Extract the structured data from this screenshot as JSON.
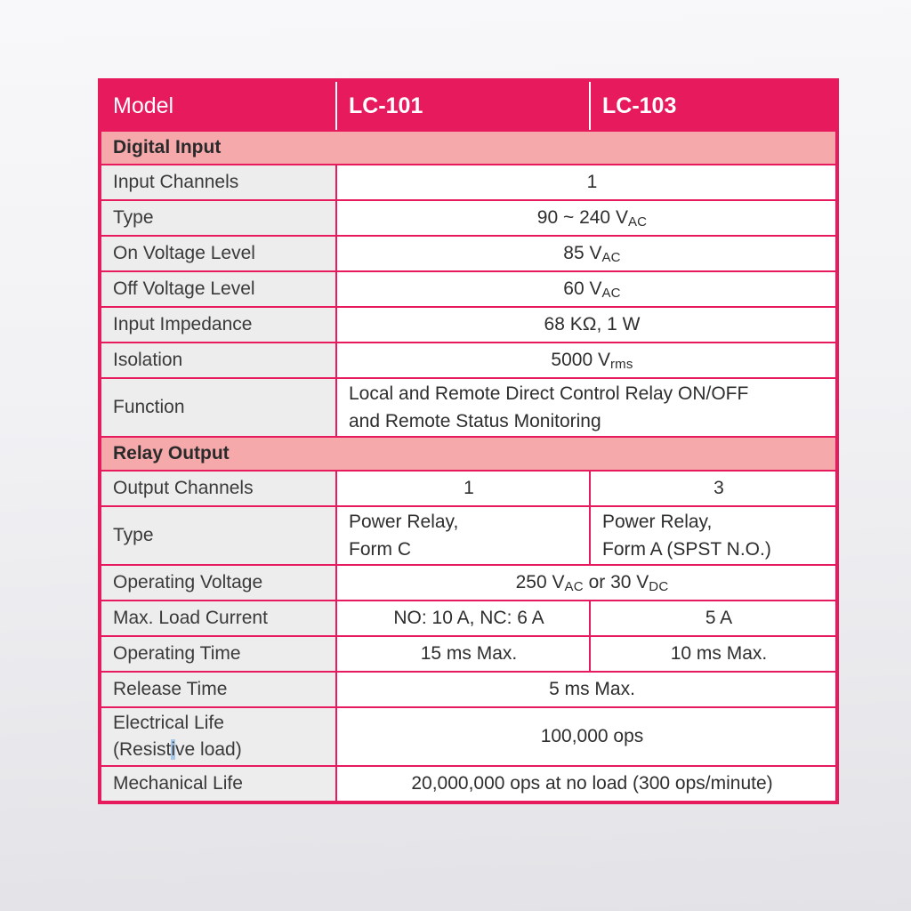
{
  "colors": {
    "header_pink": "#e61a5c",
    "section_pink": "#f5a9ab",
    "label_gray": "#ededee",
    "border_pink": "#e61a5c",
    "selection_blue": "#a9c8e9"
  },
  "table": {
    "header": {
      "model": "Model",
      "lc101": "LC-101",
      "lc103": "LC-103"
    },
    "sections": {
      "digital": "Digital Input",
      "relay": "Relay Output"
    },
    "rows": {
      "input_channels": {
        "label": "Input Channels",
        "value": "1"
      },
      "type_di": {
        "label": "Type",
        "t1": "90 ~ 240 V",
        "s1": "AC"
      },
      "on_voltage": {
        "label": "On Voltage Level",
        "t1": "85 V",
        "s1": "AC"
      },
      "off_voltage": {
        "label": "Off Voltage Level",
        "t1": "60 V",
        "s1": "AC"
      },
      "input_impedance": {
        "label": "Input Impedance",
        "value": "68 KΩ, 1 W"
      },
      "isolation": {
        "label": "Isolation",
        "t1": "5000 V",
        "s1": "rms"
      },
      "function": {
        "label": "Function",
        "line1": "Local and Remote Direct Control Relay ON/OFF",
        "line2": "and Remote Status Monitoring"
      },
      "output_channels": {
        "label": "Output Channels",
        "v1": "1",
        "v2": "3"
      },
      "type_relay": {
        "label": "Type",
        "c1l1": "Power Relay,",
        "c1l2": "Form C",
        "c2l1": "Power Relay,",
        "c2l2": "Form A (SPST N.O.)"
      },
      "operating_voltage": {
        "label": "Operating Voltage",
        "t1": "250 V",
        "s1": "AC",
        "t2": " or 30 V",
        "s2": "DC"
      },
      "max_load": {
        "label": "Max. Load Current",
        "v1": "NO: 10 A, NC: 6 A",
        "v2": "5 A"
      },
      "operating_time": {
        "label": "Operating Time",
        "v1": "15 ms Max.",
        "v2": "10 ms Max."
      },
      "release_time": {
        "label": "Release Time",
        "value": "5 ms Max."
      },
      "electrical_life": {
        "label1": "Electrical Life",
        "label2a": "(Resist",
        "label2b": "i",
        "label2c": "ve load)",
        "value": "100,000 ops"
      },
      "mechanical_life": {
        "label": "Mechanical Life",
        "value": "20,000,000 ops at no load (300 ops/minute)"
      }
    }
  }
}
